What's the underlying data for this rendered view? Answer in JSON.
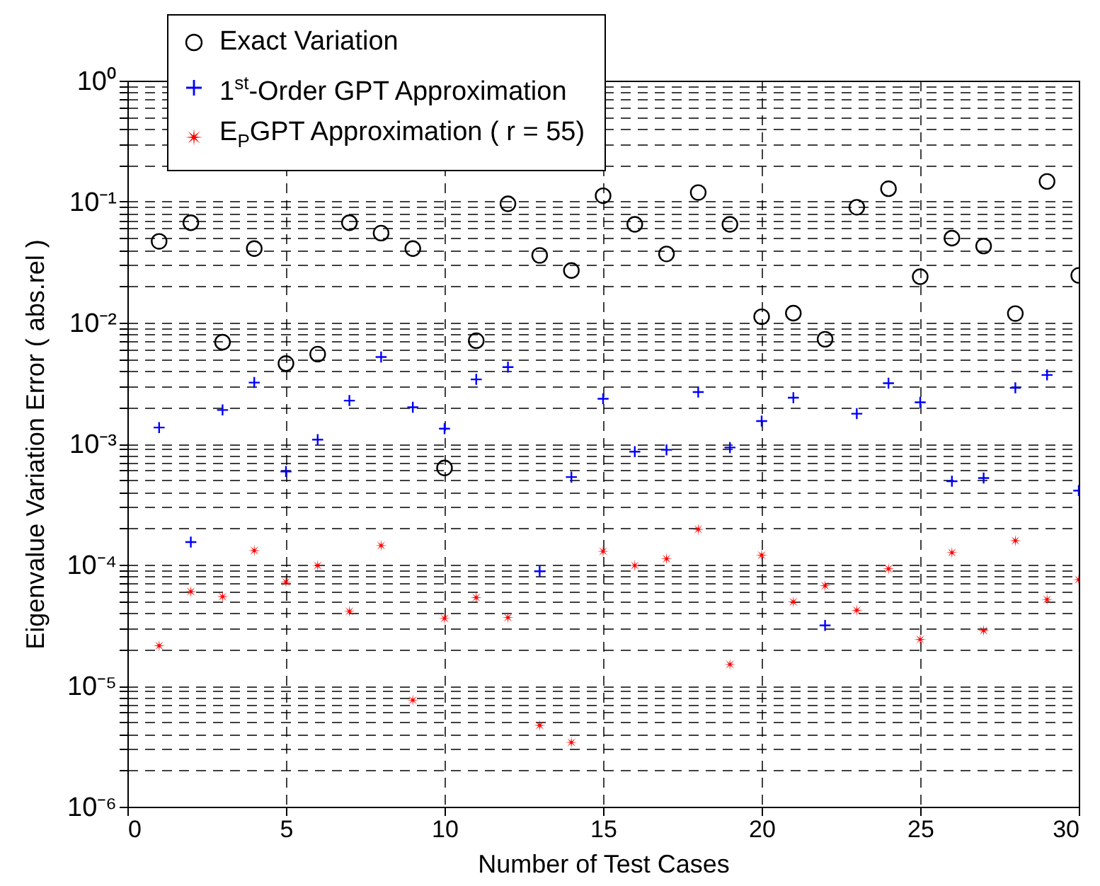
{
  "chart_data": {
    "type": "scatter",
    "xlabel": "Number of Test Cases",
    "ylabel": "Eigenvalue Variation Error ( abs.rel )",
    "x": [
      1,
      2,
      3,
      4,
      5,
      6,
      7,
      8,
      9,
      10,
      11,
      12,
      13,
      14,
      15,
      16,
      17,
      18,
      19,
      20,
      21,
      22,
      23,
      24,
      25,
      26,
      27,
      28,
      29,
      30
    ],
    "series": [
      {
        "name": "Exact Variation",
        "color": "#000000",
        "marker": "circle",
        "values": [
          0.047,
          0.067,
          0.0069,
          0.041,
          0.0046,
          0.0055,
          0.067,
          0.055,
          0.041,
          0.00063,
          0.0071,
          0.096,
          0.036,
          0.027,
          0.112,
          0.065,
          0.037,
          0.119,
          0.065,
          0.0112,
          0.012,
          0.0073,
          0.09,
          0.128,
          0.024,
          0.05,
          0.043,
          0.0119,
          0.147,
          0.0246
        ]
      },
      {
        "name": "1$^{st}$-Order GPT Approximation",
        "color": "#0000ff",
        "marker": "cross",
        "values": [
          0.00136,
          0.000154,
          0.0019,
          0.0032,
          0.00059,
          0.00108,
          0.00227,
          0.0052,
          0.002,
          0.00133,
          0.0034,
          0.0043,
          8.83e-05,
          0.00053,
          0.00235,
          0.00086,
          0.00089,
          0.00267,
          0.00093,
          0.00154,
          0.0024,
          3.15e-05,
          0.00177,
          0.00316,
          0.0022,
          0.00049,
          0.00052,
          0.0029,
          0.0037,
          0.00041
        ]
      },
      {
        "name": "E$_{P}$GPT Approximation ( r = 55)",
        "color": "#ff0000",
        "marker": "star",
        "values": [
          2.14e-05,
          6e-05,
          5.45e-05,
          0.000131,
          7.2e-05,
          9.85e-05,
          4.12e-05,
          0.000144,
          7.6e-06,
          3.6e-05,
          5.35e-05,
          3.66e-05,
          4.7e-06,
          3.4e-06,
          0.000129,
          9.85e-05,
          0.000112,
          0.000196,
          1.5e-05,
          0.00012,
          4.93e-05,
          6.7e-05,
          4.2e-05,
          9.25e-05,
          2.41e-05,
          0.000126,
          2.86e-05,
          0.000158,
          5.16e-05,
          7.52e-05
        ]
      }
    ],
    "xlim": [
      0,
      30
    ],
    "xticks": [
      0,
      5,
      10,
      15,
      20,
      25,
      30
    ],
    "ylim": [
      1e-06,
      1
    ],
    "log": true,
    "yticks": [
      {
        "value": 1e-06,
        "label": "10⁻⁶"
      },
      {
        "value": 2e-06,
        "label": null
      },
      {
        "value": 3e-06,
        "label": null
      },
      {
        "value": 4e-06,
        "label": null
      },
      {
        "value": 5e-06,
        "label": null
      },
      {
        "value": 6e-06,
        "label": null
      },
      {
        "value": 7e-06,
        "label": null
      },
      {
        "value": 8e-06,
        "label": null
      },
      {
        "value": 9e-06,
        "label": null
      },
      {
        "value": 1e-05,
        "label": "10⁻⁵"
      },
      {
        "value": 2e-05,
        "label": null
      },
      {
        "value": 3e-05,
        "label": null
      },
      {
        "value": 4e-05,
        "label": null
      },
      {
        "value": 5e-05,
        "label": null
      },
      {
        "value": 6e-05,
        "label": null
      },
      {
        "value": 7e-05,
        "label": null
      },
      {
        "value": 8e-05,
        "label": null
      },
      {
        "value": 9e-05,
        "label": null
      },
      {
        "value": 0.0001,
        "label": "10⁻⁴"
      },
      {
        "value": 0.0002,
        "label": null
      },
      {
        "value": 0.0003,
        "label": null
      },
      {
        "value": 0.0004,
        "label": null
      },
      {
        "value": 0.0005,
        "label": null
      },
      {
        "value": 0.0006,
        "label": null
      },
      {
        "value": 0.0007,
        "label": null
      },
      {
        "value": 0.0008,
        "label": null
      },
      {
        "value": 0.0009,
        "label": null
      },
      {
        "value": 0.001,
        "label": "10⁻³"
      },
      {
        "value": 0.002,
        "label": null
      },
      {
        "value": 0.003,
        "label": null
      },
      {
        "value": 0.004,
        "label": null
      },
      {
        "value": 0.005,
        "label": null
      },
      {
        "value": 0.006,
        "label": null
      },
      {
        "value": 0.007,
        "label": null
      },
      {
        "value": 0.008,
        "label": null
      },
      {
        "value": 0.009,
        "label": null
      },
      {
        "value": 0.01,
        "label": "10⁻²"
      },
      {
        "value": 0.02,
        "label": null
      },
      {
        "value": 0.03,
        "label": null
      },
      {
        "value": 0.04,
        "label": null
      },
      {
        "value": 0.05,
        "label": null
      },
      {
        "value": 0.06,
        "label": null
      },
      {
        "value": 0.07,
        "label": null
      },
      {
        "value": 0.08,
        "label": null
      },
      {
        "value": 0.09,
        "label": null
      },
      {
        "value": 0.1,
        "label": "10⁻¹"
      },
      {
        "value": 0.2,
        "label": null
      },
      {
        "value": 0.3,
        "label": null
      },
      {
        "value": 0.4,
        "label": null
      },
      {
        "value": 0.5,
        "label": null
      },
      {
        "value": 0.6,
        "label": null
      },
      {
        "value": 0.7,
        "label": null
      },
      {
        "value": 0.8,
        "label": null
      },
      {
        "value": 0.9,
        "label": null
      },
      {
        "value": 1,
        "label": "10⁰"
      }
    ],
    "grid": true,
    "legend": "top left"
  }
}
